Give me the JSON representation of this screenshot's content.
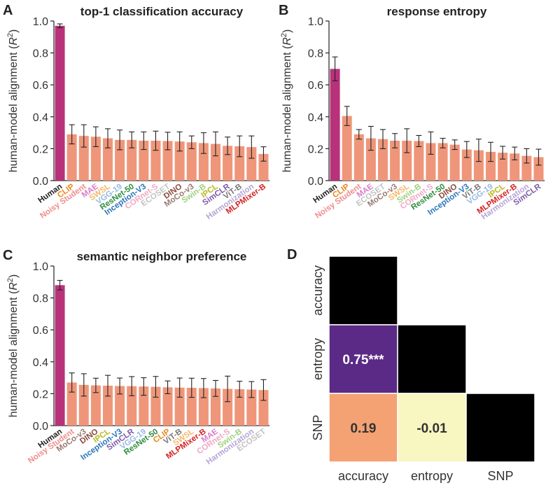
{
  "chart_data": [
    {
      "panel_letter": "A",
      "type": "bar",
      "title": "top-1 classification accuracy",
      "ylabel": "human-model alignment (R²)",
      "ylabel_main": "human-model alignment (",
      "ylabel_var": "R",
      "ylabel_sup": "2",
      "ylabel_end": ")",
      "ylim": [
        0,
        1.0
      ],
      "yticks": [
        "0.0",
        "0.2",
        "0.4",
        "0.6",
        "0.8",
        "1.0"
      ],
      "categories": [
        "Human",
        "CLIP",
        "Noisy Student",
        "MAE",
        "SWSL",
        "VGG-19",
        "ResNet-50",
        "Inception-V3",
        "CORnet-S",
        "ECOSET",
        "DINO",
        "MoCo-v3",
        "Swin-B",
        "IPCL",
        "SimCLR",
        "ViT-B",
        "Harmonization",
        "MLPMixer-B"
      ],
      "values": [
        0.97,
        0.29,
        0.28,
        0.275,
        0.265,
        0.255,
        0.255,
        0.25,
        0.25,
        0.248,
        0.245,
        0.24,
        0.235,
        0.23,
        0.218,
        0.215,
        0.21,
        0.167
      ],
      "errors": [
        0.012,
        0.06,
        0.07,
        0.062,
        0.06,
        0.062,
        0.05,
        0.055,
        0.06,
        0.055,
        0.06,
        0.04,
        0.065,
        0.075,
        0.055,
        0.065,
        0.07,
        0.045
      ]
    },
    {
      "panel_letter": "B",
      "type": "bar",
      "title": "response entropy",
      "ylabel": "human-model alignment (R²)",
      "ylabel_main": "human-model alignment (",
      "ylabel_var": "R",
      "ylabel_sup": "2",
      "ylabel_end": ")",
      "ylim": [
        0,
        1.0
      ],
      "yticks": [
        "0.0",
        "0.2",
        "0.4",
        "0.6",
        "0.8",
        "1.0"
      ],
      "categories": [
        "Human",
        "CLIP",
        "Noisy Student",
        "MAE",
        "ECOSET",
        "MoCo-v3",
        "SWSL",
        "Swin-B",
        "CORnet-S",
        "ResNet-50",
        "DINO",
        "Inception-V3",
        "ViT-B",
        "VGG-19",
        "IPCL",
        "MLPMixer-B",
        "Harmonization",
        "SimCLR"
      ],
      "values": [
        0.7,
        0.405,
        0.29,
        0.265,
        0.26,
        0.25,
        0.25,
        0.248,
        0.235,
        0.235,
        0.225,
        0.195,
        0.19,
        0.18,
        0.175,
        0.17,
        0.155,
        0.147
      ],
      "errors": [
        0.075,
        0.06,
        0.03,
        0.075,
        0.06,
        0.045,
        0.075,
        0.035,
        0.07,
        0.03,
        0.03,
        0.05,
        0.07,
        0.06,
        0.04,
        0.04,
        0.045,
        0.05
      ]
    },
    {
      "panel_letter": "C",
      "type": "bar",
      "title": "semantic neighbor preference",
      "ylabel": "human-model alignment (R²)",
      "ylabel_main": "human-model alignment (",
      "ylabel_var": "R",
      "ylabel_sup": "2",
      "ylabel_end": ")",
      "ylim": [
        0,
        1.0
      ],
      "yticks": [
        "0.0",
        "0.2",
        "0.4",
        "0.6",
        "0.8",
        "1.0"
      ],
      "categories": [
        "Human",
        "Noisy Student",
        "MoCo-v3",
        "DINO",
        "IPCL",
        "Inception-V3",
        "SimCLR",
        "VGG-19",
        "ResNet-50",
        "CLIP",
        "ViT-B",
        "SWSL",
        "MLPMixer-B",
        "MAE",
        "CORnet-S",
        "Swin-B",
        "Harmonization",
        "ECOSET"
      ],
      "values": [
        0.88,
        0.27,
        0.255,
        0.252,
        0.25,
        0.248,
        0.247,
        0.245,
        0.243,
        0.24,
        0.238,
        0.237,
        0.235,
        0.233,
        0.23,
        0.228,
        0.226,
        0.223
      ],
      "errors": [
        0.03,
        0.06,
        0.07,
        0.045,
        0.065,
        0.05,
        0.06,
        0.055,
        0.065,
        0.04,
        0.06,
        0.06,
        0.06,
        0.05,
        0.08,
        0.05,
        0.05,
        0.065
      ]
    },
    {
      "panel_letter": "D",
      "type": "heatmap",
      "rows": [
        "accuracy",
        "entropy",
        "SNP"
      ],
      "columns": [
        "accuracy",
        "entropy",
        "SNP"
      ],
      "cells": [
        {
          "row": 0,
          "col": 0,
          "value": null,
          "label": "",
          "color": "#000000"
        },
        {
          "row": 1,
          "col": 0,
          "value": 0.75,
          "label": "0.75***",
          "color": "#5b2a86"
        },
        {
          "row": 1,
          "col": 1,
          "value": null,
          "label": "",
          "color": "#000000"
        },
        {
          "row": 2,
          "col": 0,
          "value": 0.19,
          "label": "0.19",
          "color": "#f4a173"
        },
        {
          "row": 2,
          "col": 1,
          "value": -0.01,
          "label": "-0.01",
          "color": "#f8f6c1"
        },
        {
          "row": 2,
          "col": 2,
          "value": null,
          "label": "",
          "color": "#000000"
        }
      ]
    }
  ],
  "colors": {
    "human_bar": "#b8327a",
    "model_bar": "#ef967a",
    "error_bar": "#222222",
    "label_colors": {
      "Human": "#222222",
      "CLIP": "#e8891a",
      "Noisy Student": "#f08c8c",
      "MAE": "#d67fc8",
      "SWSL": "#f5b86a",
      "VGG-19": "#96b9e2",
      "ResNet-50": "#2e8b3e",
      "Inception-V3": "#2a76b8",
      "CORnet-S": "#f0a8c4",
      "ECOSET": "#c2c2c2",
      "DINO": "#8b4a3c",
      "MoCo-v3": "#9a7a72",
      "Swin-B": "#9ed07e",
      "IPCL": "#b8b820",
      "SimCLR": "#7e5aa8",
      "ViT-B": "#777777",
      "Harmonization": "#b5a5d5",
      "MLPMixer-B": "#d52222"
    }
  }
}
